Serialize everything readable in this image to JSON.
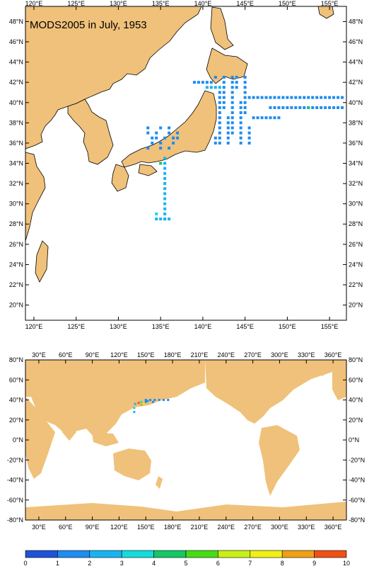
{
  "title": "MODS2005 in July, 1953",
  "colors": {
    "land": "#f0c17a",
    "frame": "#000000",
    "scale": [
      "#1e52d8",
      "#1e8cf0",
      "#19b4f0",
      "#14dcdc",
      "#14c864",
      "#46dc14",
      "#c8f014",
      "#f0f014",
      "#f0a014",
      "#f05014"
    ]
  },
  "top_map": {
    "lon_ticks": [
      "120°E",
      "125°E",
      "130°E",
      "135°E",
      "140°E",
      "145°E",
      "150°E",
      "155°E"
    ],
    "lat_ticks": [
      "48°N",
      "46°N",
      "44°N",
      "42°N",
      "40°N",
      "38°N",
      "36°N",
      "34°N",
      "32°N",
      "30°N",
      "28°N",
      "26°N",
      "24°N",
      "22°N",
      "20°N"
    ],
    "extent": {
      "lon": [
        119,
        157
      ],
      "lat": [
        18.5,
        49.5
      ]
    }
  },
  "bottom_map": {
    "lon_ticks": [
      "30°E",
      "60°E",
      "90°E",
      "120°E",
      "150°E",
      "180°E",
      "210°E",
      "240°E",
      "270°E",
      "300°E",
      "330°E",
      "360°E"
    ],
    "lat_ticks": [
      "80°N",
      "60°N",
      "40°N",
      "20°N",
      "0°N",
      "-20°N",
      "-40°N",
      "-60°N",
      "-80°N"
    ]
  },
  "colorbar": {
    "labels": [
      "0",
      "1",
      "2",
      "3",
      "4",
      "5",
      "6",
      "7",
      "8",
      "9",
      "10"
    ]
  }
}
